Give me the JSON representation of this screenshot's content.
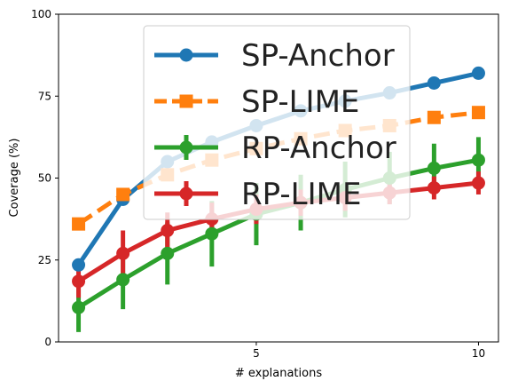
{
  "chart_data": {
    "type": "line",
    "xlabel": "# explanations",
    "ylabel": "Coverage (%)",
    "xlim": [
      0.55,
      10.45
    ],
    "ylim": [
      0,
      100
    ],
    "x_ticks": [
      5,
      10
    ],
    "y_ticks": [
      0,
      25,
      50,
      75,
      100
    ],
    "grid": false,
    "legend_placement": "upper-center",
    "x": [
      1,
      2,
      3,
      4,
      5,
      6,
      7,
      8,
      9,
      10
    ],
    "series": [
      {
        "name": "SP-Anchor",
        "color": "#1f77b4",
        "style": "solid",
        "marker": "circle",
        "values": [
          23.5,
          43.5,
          55,
          61,
          66,
          70.5,
          73.5,
          76,
          79,
          82
        ]
      },
      {
        "name": "SP-LIME",
        "color": "#ff7f0e",
        "style": "dashed",
        "marker": "square",
        "values": [
          36,
          45,
          51,
          55.5,
          59,
          62,
          64.5,
          66,
          68.5,
          70
        ]
      },
      {
        "name": "RP-Anchor",
        "color": "#2ca02c",
        "style": "solid",
        "marker": "circle",
        "values": [
          10.5,
          19,
          27,
          33,
          39,
          42.5,
          46.5,
          50,
          53,
          55.5
        ],
        "error": [
          7.5,
          9,
          9.5,
          10,
          9.5,
          8.5,
          8.5,
          8,
          7.5,
          7
        ]
      },
      {
        "name": "RP-LIME",
        "color": "#d62728",
        "style": "solid",
        "marker": "circle",
        "values": [
          18.5,
          27,
          34,
          37.5,
          40.5,
          42.5,
          44,
          45.5,
          47,
          48.5
        ],
        "error": [
          5,
          7,
          5.5,
          5,
          4.5,
          4,
          4,
          3.5,
          3.5,
          3.5
        ]
      }
    ]
  }
}
